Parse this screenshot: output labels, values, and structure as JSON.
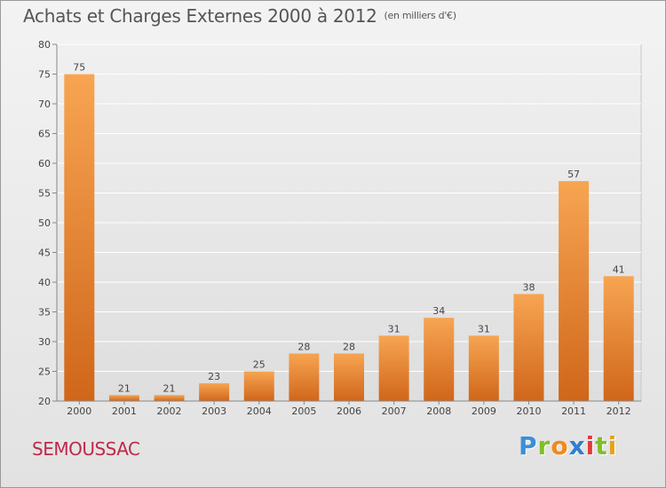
{
  "title": "Achats et Charges Externes 2000 à 2012",
  "unit_note": "(en milliers d'€)",
  "commune": "SEMOUSSAC",
  "logo": {
    "letters": [
      "P",
      "r",
      "o",
      "x",
      "i",
      "t",
      "i"
    ],
    "colors": [
      "#3a8fd6",
      "#7fbf2a",
      "#f08a1c",
      "#2f7fd0",
      "#e23b3b",
      "#7fbf2a",
      "#e6a21b"
    ]
  },
  "colors": {
    "bar_top": "#f7a552",
    "bar_bottom": "#d0661a",
    "grid": "#ffffff",
    "axis": "#888888"
  },
  "chart_data": {
    "type": "bar",
    "title": "Achats et Charges Externes 2000 à 2012",
    "subtitle": "(en milliers d'€)",
    "xlabel": "",
    "ylabel": "",
    "categories": [
      "2000",
      "2001",
      "2002",
      "2003",
      "2004",
      "2005",
      "2006",
      "2007",
      "2008",
      "2009",
      "2010",
      "2011",
      "2012"
    ],
    "values": [
      75,
      21,
      21,
      23,
      25,
      28,
      28,
      31,
      34,
      31,
      38,
      57,
      41
    ],
    "ylim": [
      20,
      80
    ],
    "yticks": [
      20,
      25,
      30,
      35,
      40,
      45,
      50,
      55,
      60,
      65,
      70,
      75,
      80
    ],
    "grid": true,
    "legend": "none"
  }
}
